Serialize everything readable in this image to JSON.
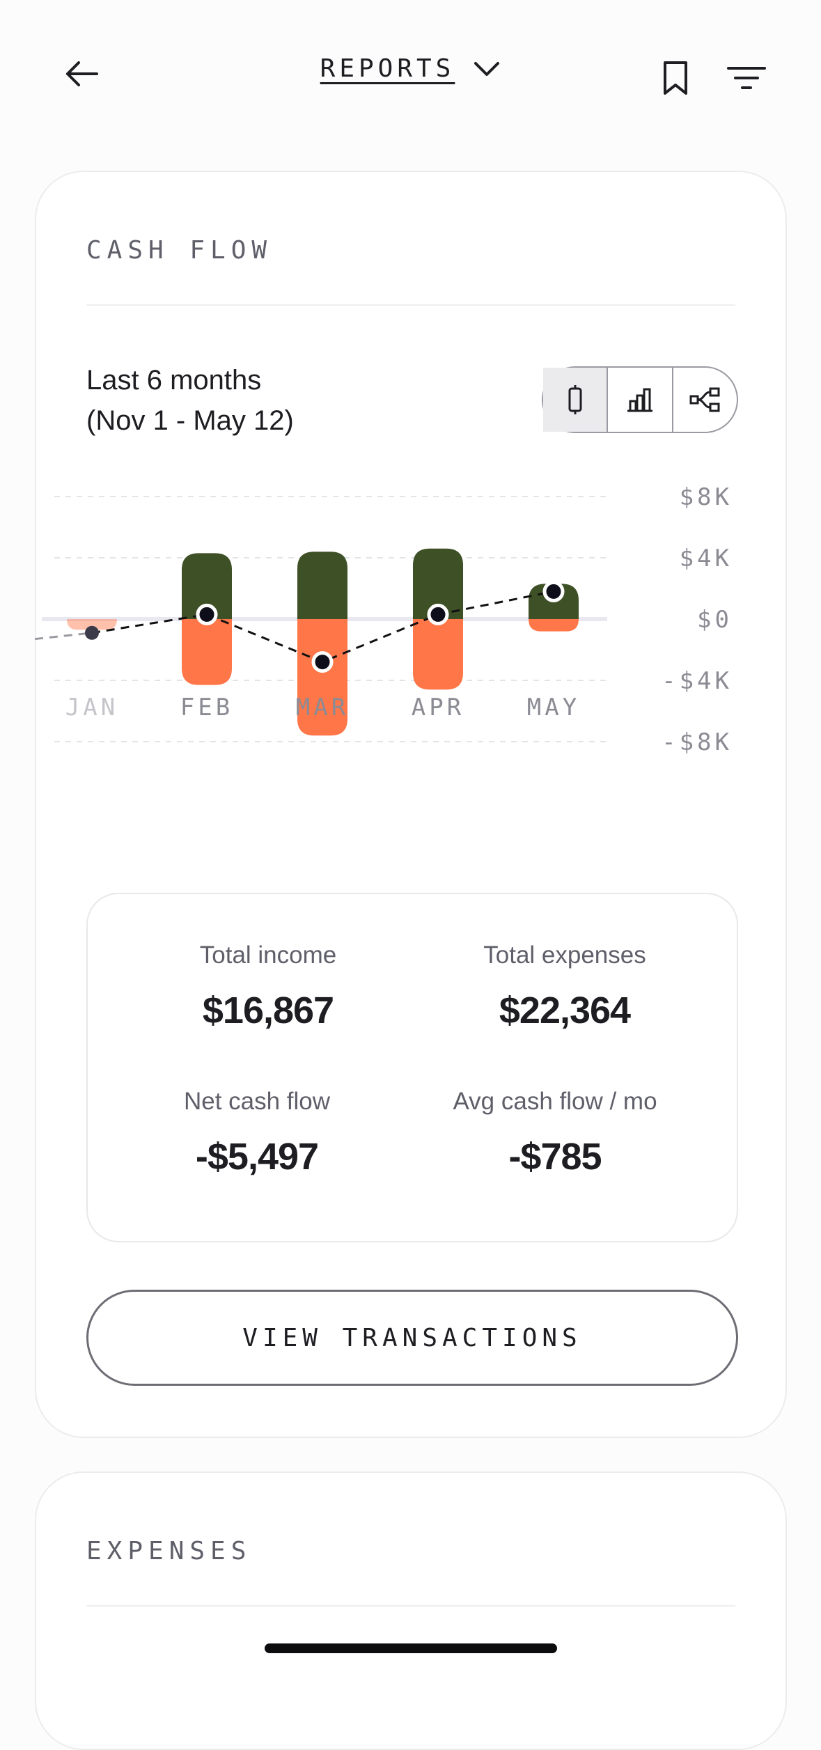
{
  "header": {
    "title": "REPORTS"
  },
  "cash_flow": {
    "section_label": "CASH FLOW",
    "range_line1": "Last 6 months",
    "range_line2": "(Nov 1 - May 12)",
    "view_toggle": [
      "cash-flow-bars",
      "bar-chart",
      "sankey"
    ],
    "chart_data": {
      "type": "bar",
      "categories": [
        "JAN",
        "FEB",
        "MAR",
        "APR",
        "MAY"
      ],
      "series": [
        {
          "values": [
            0,
            4300,
            4400,
            4600,
            2300
          ]
        },
        {
          "values": [
            -700,
            -4300,
            -7600,
            -4600,
            -800
          ]
        }
      ],
      "net_line": [
        -900,
        300,
        -2800,
        300,
        1800
      ],
      "y_ticks": [
        "$8K",
        "$4K",
        "$0",
        "-$4K",
        "-$8K"
      ],
      "ylim": [
        -8000,
        8000
      ],
      "colors": {
        "income": "#3d5026",
        "expenses": "#ff7648",
        "net_line": "#111111"
      }
    },
    "stats": {
      "total_income_label": "Total income",
      "total_income_value": "$16,867",
      "total_expenses_label": "Total expenses",
      "total_expenses_value": "$22,364",
      "net_cash_flow_label": "Net cash flow",
      "net_cash_flow_value": "-$5,497",
      "avg_cash_flow_label": "Avg cash flow / mo",
      "avg_cash_flow_value": "-$785"
    },
    "view_button": "VIEW TRANSACTIONS"
  },
  "expenses": {
    "section_label": "EXPENSES"
  }
}
